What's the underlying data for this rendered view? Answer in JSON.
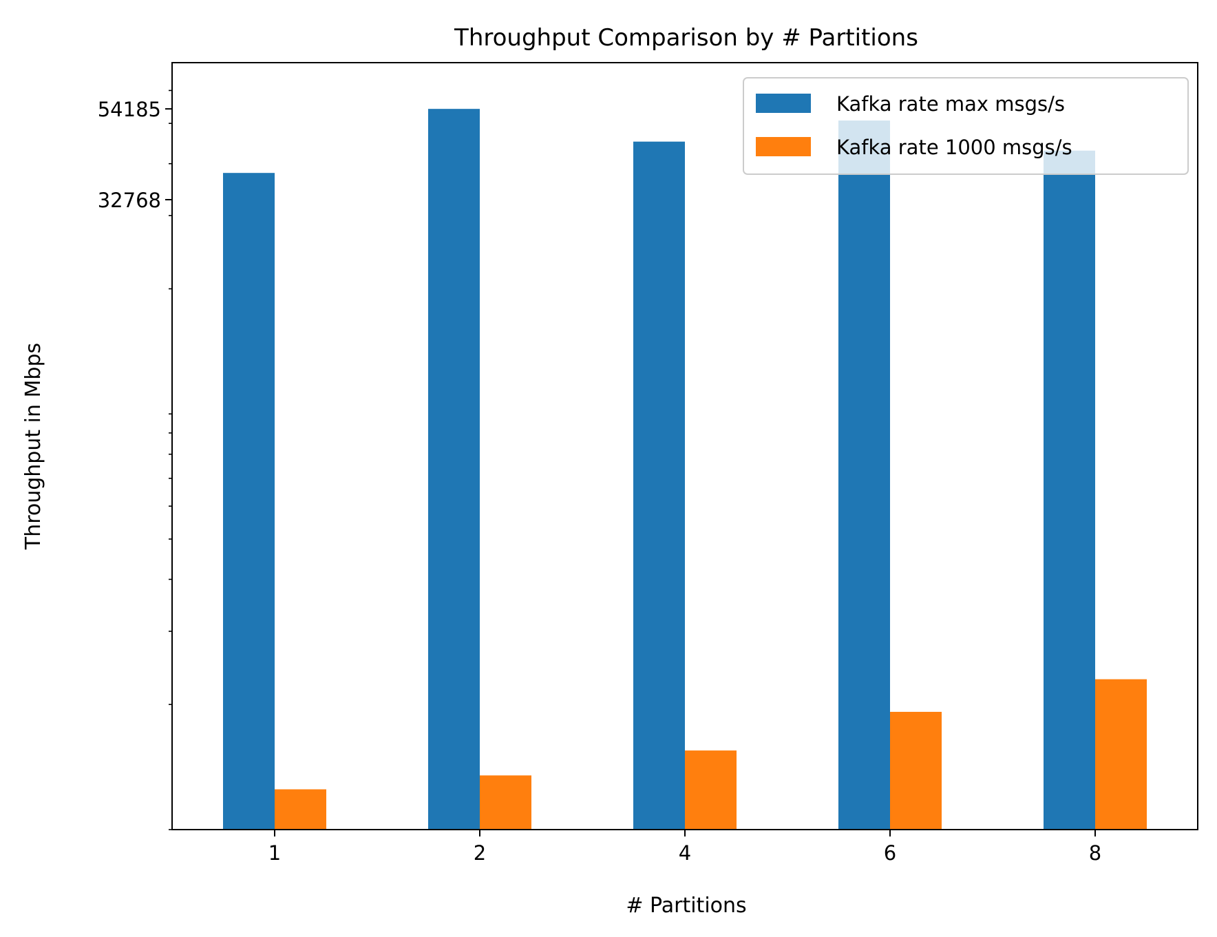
{
  "chart_data": {
    "type": "bar",
    "title": "Throughput Comparison by # Partitions",
    "xlabel": "# Partitions",
    "ylabel": "Throughput in Mbps",
    "yscale": "log",
    "ylim": [
      1000,
      70000
    ],
    "y_major_ticks": [
      {
        "value": 32768,
        "label": "32768"
      },
      {
        "value": 54185,
        "label": "54185"
      }
    ],
    "y_minor_ticks": [
      1000,
      2000,
      3000,
      4000,
      5000,
      6000,
      7000,
      8000,
      9000,
      10000,
      20000,
      30000,
      40000,
      50000,
      60000
    ],
    "categories": [
      "1",
      "2",
      "4",
      "6",
      "8"
    ],
    "series": [
      {
        "name": "Kafka rate max msgs/s",
        "color": "#1f77b4",
        "values": [
          38000,
          54185,
          45200,
          50800,
          43000
        ]
      },
      {
        "name": "Kafka rate 1000 msgs/s",
        "color": "#ff7f0e",
        "values": [
          1250,
          1350,
          1550,
          1920,
          2300
        ]
      }
    ],
    "legend": {
      "position": "top-right"
    },
    "grid": false
  }
}
